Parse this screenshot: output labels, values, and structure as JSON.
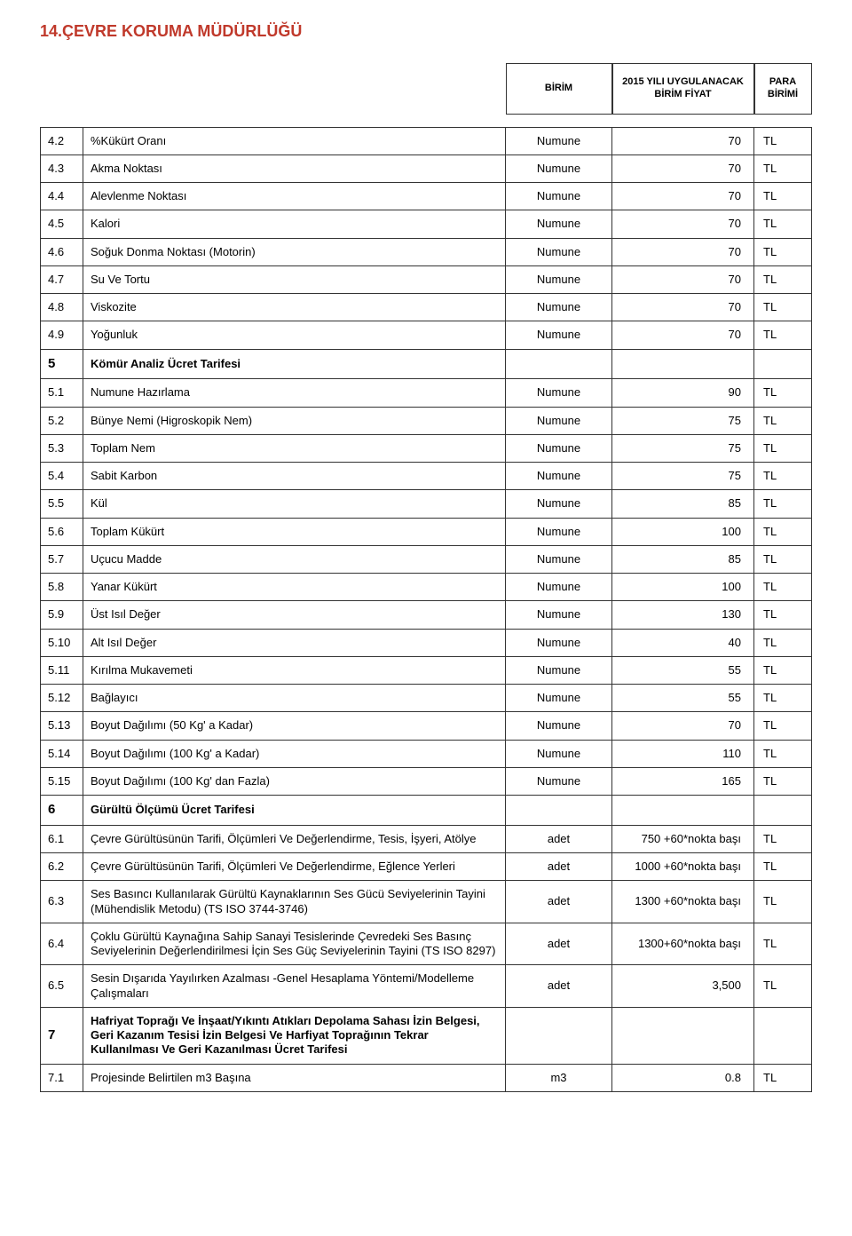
{
  "title": "14.ÇEVRE KORUMA MÜDÜRLÜĞÜ",
  "headers": {
    "unit": "BİRİM",
    "price": "2015 YILI UYGULANACAK BİRİM FİYAT",
    "currency": "PARA BİRİMİ"
  },
  "rows": [
    {
      "n": "4.2",
      "d": "%Kükürt Oranı",
      "u": "Numune",
      "p": "70",
      "c": "TL"
    },
    {
      "n": "4.3",
      "d": "Akma Noktası",
      "u": "Numune",
      "p": "70",
      "c": "TL"
    },
    {
      "n": "4.4",
      "d": "Alevlenme Noktası",
      "u": "Numune",
      "p": "70",
      "c": "TL"
    },
    {
      "n": "4.5",
      "d": "Kalori",
      "u": "Numune",
      "p": "70",
      "c": "TL"
    },
    {
      "n": "4.6",
      "d": "Soğuk Donma Noktası (Motorin)",
      "u": "Numune",
      "p": "70",
      "c": "TL"
    },
    {
      "n": "4.7",
      "d": "Su Ve Tortu",
      "u": "Numune",
      "p": "70",
      "c": "TL"
    },
    {
      "n": "4.8",
      "d": "Viskozite",
      "u": "Numune",
      "p": "70",
      "c": "TL"
    },
    {
      "n": "4.9",
      "d": "Yoğunluk",
      "u": "Numune",
      "p": "70",
      "c": "TL"
    },
    {
      "n": "5",
      "d": "Kömür Analiz Ücret Tarifesi",
      "section": true
    },
    {
      "n": "5.1",
      "d": "Numune Hazırlama",
      "u": "Numune",
      "p": "90",
      "c": "TL"
    },
    {
      "n": "5.2",
      "d": "Bünye Nemi (Higroskopik Nem)",
      "u": "Numune",
      "p": "75",
      "c": "TL"
    },
    {
      "n": "5.3",
      "d": "Toplam Nem",
      "u": "Numune",
      "p": "75",
      "c": "TL"
    },
    {
      "n": "5.4",
      "d": "Sabit Karbon",
      "u": "Numune",
      "p": "75",
      "c": "TL"
    },
    {
      "n": "5.5",
      "d": "Kül",
      "u": "Numune",
      "p": "85",
      "c": "TL"
    },
    {
      "n": "5.6",
      "d": "Toplam Kükürt",
      "u": "Numune",
      "p": "100",
      "c": "TL"
    },
    {
      "n": "5.7",
      "d": "Uçucu Madde",
      "u": "Numune",
      "p": "85",
      "c": "TL"
    },
    {
      "n": "5.8",
      "d": "Yanar Kükürt",
      "u": "Numune",
      "p": "100",
      "c": "TL"
    },
    {
      "n": "5.9",
      "d": "Üst Isıl Değer",
      "u": "Numune",
      "p": "130",
      "c": "TL"
    },
    {
      "n": "5.10",
      "d": "Alt Isıl Değer",
      "u": "Numune",
      "p": "40",
      "c": "TL"
    },
    {
      "n": "5.11",
      "d": "Kırılma Mukavemeti",
      "u": "Numune",
      "p": "55",
      "c": "TL"
    },
    {
      "n": "5.12",
      "d": "Bağlayıcı",
      "u": "Numune",
      "p": "55",
      "c": "TL"
    },
    {
      "n": "5.13",
      "d": "Boyut Dağılımı (50 Kg' a Kadar)",
      "u": "Numune",
      "p": "70",
      "c": "TL"
    },
    {
      "n": "5.14",
      "d": "Boyut Dağılımı (100 Kg' a Kadar)",
      "u": "Numune",
      "p": "110",
      "c": "TL"
    },
    {
      "n": "5.15",
      "d": "Boyut Dağılımı (100 Kg' dan Fazla)",
      "u": "Numune",
      "p": "165",
      "c": "TL"
    },
    {
      "n": "6",
      "d": "Gürültü Ölçümü Ücret Tarifesi",
      "section": true
    },
    {
      "n": "6.1",
      "d": "Çevre Gürültüsünün Tarifi, Ölçümleri Ve Değerlendirme, Tesis, İşyeri, Atölye",
      "u": "adet",
      "p": "750 +60*nokta başı",
      "c": "TL"
    },
    {
      "n": "6.2",
      "d": "Çevre Gürültüsünün Tarifi, Ölçümleri Ve Değerlendirme, Eğlence Yerleri",
      "u": "adet",
      "p": "1000 +60*nokta başı",
      "c": "TL"
    },
    {
      "n": "6.3",
      "d": "Ses Basıncı Kullanılarak Gürültü Kaynaklarının Ses Gücü Seviyelerinin Tayini (Mühendislik Metodu) (TS ISO 3744-3746)",
      "u": "adet",
      "p": "1300 +60*nokta başı",
      "c": "TL"
    },
    {
      "n": "6.4",
      "d": "Çoklu Gürültü Kaynağına Sahip Sanayi Tesislerinde Çevredeki Ses Basınç Seviyelerinin Değerlendirilmesi İçin  Ses Güç Seviyelerinin Tayini (TS ISO 8297)",
      "u": "adet",
      "p": "1300+60*nokta başı",
      "c": "TL"
    },
    {
      "n": "6.5",
      "d": "Sesin Dışarıda Yayılırken Azalması -Genel Hesaplama Yöntemi/Modelleme Çalışmaları",
      "u": "adet",
      "p": "3,500",
      "c": "TL"
    },
    {
      "n": "7",
      "d": "Hafriyat Toprağı Ve İnşaat/Yıkıntı Atıkları Depolama Sahası İzin Belgesi, Geri Kazanım Tesisi İzin Belgesi Ve Harfiyat Toprağının Tekrar Kullanılması Ve Geri Kazanılması Ücret Tarifesi",
      "section": true
    },
    {
      "n": "7.1",
      "d": "Projesinde Belirtilen m3 Başına",
      "u": "m3",
      "p": "0.8",
      "c": "TL"
    }
  ]
}
